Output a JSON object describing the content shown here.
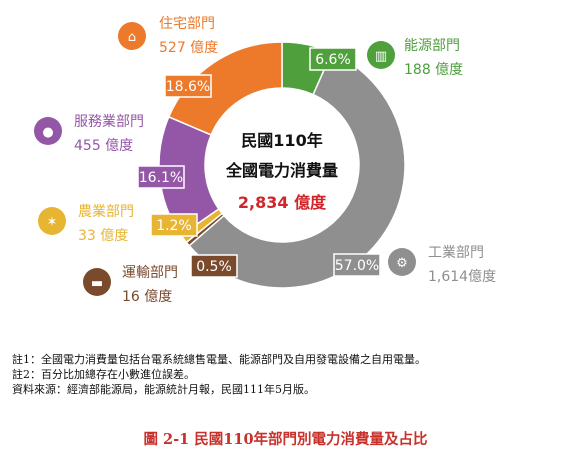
{
  "chart_data": {
    "type": "pie",
    "variant": "donut",
    "center": {
      "line1": "民國110年",
      "line2": "全國電力消費量",
      "total": "2,834 億度"
    },
    "unit": "億度",
    "slices": [
      {
        "name": "能源部門",
        "value": 188,
        "value_label": "188 億度",
        "percent": "6.6%",
        "color": "#4f9f3d",
        "icon": "factory-icon"
      },
      {
        "name": "工業部門",
        "value": 1614,
        "value_label": "1,614億度",
        "percent": "57.0%",
        "color": "#8f8f8f",
        "icon": "gears-icon"
      },
      {
        "name": "運輸部門",
        "value": 16,
        "value_label": "16 億度",
        "percent": "0.5%",
        "color": "#7a4a2d",
        "icon": "car-icon"
      },
      {
        "name": "農業部門",
        "value": 33,
        "value_label": "33 億度",
        "percent": "1.2%",
        "color": "#e8b532",
        "icon": "wheat-icon"
      },
      {
        "name": "服務業部門",
        "value": 455,
        "value_label": "455 億度",
        "percent": "16.1%",
        "color": "#9457a8",
        "icon": "person-icon"
      },
      {
        "name": "住宅部門",
        "value": 527,
        "value_label": "527 億度",
        "percent": "18.6%",
        "color": "#ec7a2a",
        "icon": "house-icon"
      }
    ]
  },
  "notes": [
    "註1：全國電力消費量包括台電系統總售電量、能源部門及自用發電設備之自用電量。",
    "註2：百分比加總存在小數進位誤差。",
    "資料來源：經濟部能源局，能源統計月報，民國111年5月版。"
  ],
  "caption": "圖 2-1  民國110年部門別電力消費量及占比"
}
